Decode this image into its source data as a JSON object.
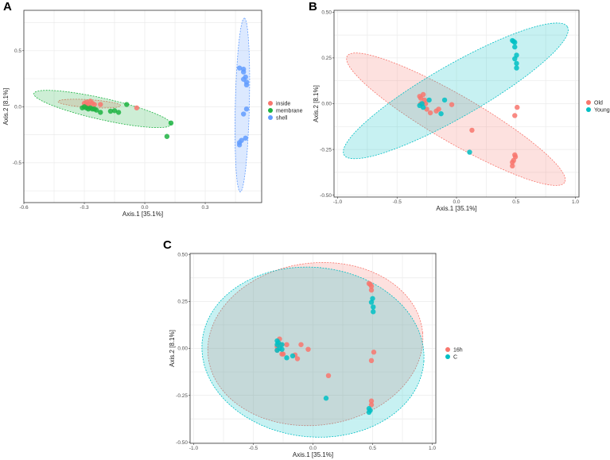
{
  "panel_labels": [
    "A",
    "B",
    "C"
  ],
  "chart_data": [
    {
      "type": "scatter",
      "panel": "A",
      "xlabel": "Axis.1   [35.1%]",
      "ylabel": "Axis.2   [8.1%]",
      "xlim": [
        -0.6,
        0.58
      ],
      "ylim": [
        -0.855,
        0.86
      ],
      "xticks": [
        -0.6,
        -0.3,
        0.0,
        0.3
      ],
      "xtick_labels": [
        "-0.6",
        "-0.3",
        "0.0",
        "0.3"
      ],
      "yticks": [
        -0.5,
        0.0,
        0.5
      ],
      "ytick_labels": [
        "-0.5",
        "0.0",
        "0.5"
      ],
      "grid": true,
      "legend": "right",
      "series": [
        {
          "name": "inside",
          "color": "#F8766D",
          "ellipse": {
            "center": [
              -0.275,
              0.028
            ],
            "a": [
              0.155,
              -0.018
            ],
            "b": [
              0.0,
              0.035
            ]
          },
          "points": [
            [
              -0.3,
              0.03
            ],
            [
              -0.29,
              0.04
            ],
            [
              -0.28,
              0.02
            ],
            [
              -0.27,
              0.05
            ],
            [
              -0.26,
              0.03
            ],
            [
              -0.25,
              0.02
            ],
            [
              -0.22,
              0.02
            ],
            [
              -0.28,
              0.0
            ],
            [
              -0.04,
              -0.01
            ]
          ]
        },
        {
          "name": "membrane",
          "color": "#1DB342",
          "ellipse": {
            "center": [
              -0.21,
              -0.02
            ],
            "a": [
              0.34,
              -0.14
            ],
            "b": [
              0.02,
              0.09
            ]
          },
          "points": [
            [
              -0.31,
              -0.01
            ],
            [
              -0.3,
              0.0
            ],
            [
              -0.29,
              -0.01
            ],
            [
              -0.28,
              -0.02
            ],
            [
              -0.27,
              -0.01
            ],
            [
              -0.26,
              -0.02
            ],
            [
              -0.25,
              -0.02
            ],
            [
              -0.24,
              -0.03
            ],
            [
              -0.22,
              -0.05
            ],
            [
              -0.17,
              -0.04
            ],
            [
              -0.15,
              -0.035
            ],
            [
              -0.13,
              -0.05
            ],
            [
              -0.09,
              0.02
            ],
            [
              0.13,
              -0.145
            ],
            [
              0.11,
              -0.265
            ]
          ]
        },
        {
          "name": "shell",
          "color": "#619CFF",
          "ellipse": {
            "center": [
              0.484,
              0.015
            ],
            "a": [
              0.01,
              0.775
            ],
            "b": [
              0.035,
              0.0
            ]
          },
          "points": [
            [
              0.47,
              0.345
            ],
            [
              0.49,
              0.335
            ],
            [
              0.49,
              0.31
            ],
            [
              0.5,
              0.265
            ],
            [
              0.49,
              0.245
            ],
            [
              0.505,
              0.22
            ],
            [
              0.505,
              0.195
            ],
            [
              0.505,
              -0.02
            ],
            [
              0.49,
              -0.065
            ],
            [
              0.5,
              -0.28
            ],
            [
              0.48,
              -0.3
            ],
            [
              0.47,
              -0.32
            ],
            [
              0.47,
              -0.34
            ]
          ]
        }
      ]
    },
    {
      "type": "scatter",
      "panel": "B",
      "xlabel": "Axis.1   [35.1%]",
      "ylabel": "Axis.2   [8.1%]",
      "xlim": [
        -1.03,
        1.03
      ],
      "ylim": [
        -0.51,
        0.51
      ],
      "xticks": [
        -1.0,
        -0.5,
        0.0,
        0.5,
        1.0
      ],
      "xtick_labels": [
        "-1.0",
        "-0.5",
        "0.0",
        "0.5",
        "1.0"
      ],
      "yticks": [
        -0.5,
        -0.25,
        0.0,
        0.25,
        0.5
      ],
      "ytick_labels": [
        "-0.50",
        "-0.25",
        "0.00",
        "0.25",
        "0.50"
      ],
      "grid": true,
      "legend": "right",
      "series": [
        {
          "name": "Old",
          "color": "#F8766D",
          "ellipse": {
            "center": [
              -0.005,
              -0.085
            ],
            "a": [
              0.915,
              -0.345
            ],
            "b": [
              -0.1,
              -0.11
            ]
          },
          "points": [
            [
              -0.31,
              0.04
            ],
            [
              -0.3,
              0.03
            ],
            [
              -0.28,
              0.05
            ],
            [
              -0.27,
              0.02
            ],
            [
              -0.3,
              0.0
            ],
            [
              -0.26,
              0.0
            ],
            [
              -0.25,
              -0.03
            ],
            [
              -0.22,
              -0.05
            ],
            [
              -0.17,
              -0.04
            ],
            [
              -0.15,
              -0.03
            ],
            [
              -0.04,
              -0.005
            ],
            [
              0.13,
              -0.145
            ],
            [
              0.51,
              -0.02
            ],
            [
              0.49,
              -0.065
            ],
            [
              0.49,
              -0.28
            ],
            [
              0.495,
              -0.29
            ],
            [
              0.48,
              -0.31
            ],
            [
              0.47,
              -0.32
            ],
            [
              0.47,
              -0.34
            ]
          ]
        },
        {
          "name": "Young",
          "color": "#00BFC4",
          "ellipse": {
            "center": [
              -0.006,
              0.07
            ],
            "a": [
              0.94,
              0.35
            ],
            "b": [
              0.11,
              -0.123
            ]
          },
          "points": [
            [
              -0.31,
              -0.01
            ],
            [
              -0.29,
              0.0
            ],
            [
              -0.28,
              -0.02
            ],
            [
              -0.23,
              0.02
            ],
            [
              -0.1,
              0.02
            ],
            [
              -0.13,
              -0.055
            ],
            [
              0.11,
              -0.265
            ],
            [
              0.47,
              0.345
            ],
            [
              0.48,
              0.34
            ],
            [
              0.49,
              0.335
            ],
            [
              0.49,
              0.31
            ],
            [
              0.505,
              0.265
            ],
            [
              0.49,
              0.245
            ],
            [
              0.505,
              0.22
            ],
            [
              0.505,
              0.195
            ]
          ]
        }
      ]
    },
    {
      "type": "scatter",
      "panel": "C",
      "xlabel": "Axis.1   [35.1%]",
      "ylabel": "Axis.2   [8.1%]",
      "xlim": [
        -1.03,
        1.03
      ],
      "ylim": [
        -0.505,
        0.505
      ],
      "xticks": [
        -1.0,
        -0.5,
        0.0,
        0.5,
        1.0
      ],
      "xtick_labels": [
        "-1.0",
        "-0.5",
        "0.0",
        "0.5",
        "1.0"
      ],
      "yticks": [
        -0.5,
        -0.25,
        0.0,
        0.25,
        0.5
      ],
      "ytick_labels": [
        "-0.50",
        "-0.25",
        "0.00",
        "0.25",
        "0.50"
      ],
      "grid": true,
      "legend": "right",
      "series": [
        {
          "name": "16h",
          "color": "#F8766D",
          "ellipse": {
            "center": [
              0.02,
              0.023
            ],
            "a": [
              0.9,
              0.06
            ],
            "b": [
              -0.06,
              0.43
            ]
          },
          "points": [
            [
              -0.3,
              0.01
            ],
            [
              -0.28,
              0.05
            ],
            [
              -0.27,
              0.02
            ],
            [
              -0.3,
              -0.01
            ],
            [
              -0.26,
              -0.03
            ],
            [
              -0.25,
              -0.03
            ],
            [
              -0.22,
              0.02
            ],
            [
              -0.1,
              0.02
            ],
            [
              -0.04,
              -0.005
            ],
            [
              -0.15,
              -0.035
            ],
            [
              -0.13,
              -0.055
            ],
            [
              0.13,
              -0.145
            ],
            [
              0.47,
              0.345
            ],
            [
              0.48,
              0.34
            ],
            [
              0.49,
              0.33
            ],
            [
              0.49,
              0.31
            ],
            [
              0.51,
              -0.02
            ],
            [
              0.49,
              -0.065
            ],
            [
              0.49,
              -0.28
            ],
            [
              0.49,
              -0.3
            ]
          ]
        },
        {
          "name": "C",
          "color": "#00BFC4",
          "ellipse": {
            "center": [
              0.0,
              -0.02
            ],
            "a": [
              0.93,
              -0.05
            ],
            "b": [
              0.05,
              0.45
            ]
          },
          "points": [
            [
              -0.3,
              0.04
            ],
            [
              -0.29,
              0.03
            ],
            [
              -0.3,
              0.02
            ],
            [
              -0.28,
              0.0
            ],
            [
              -0.3,
              -0.01
            ],
            [
              -0.26,
              0.02
            ],
            [
              -0.26,
              -0.005
            ],
            [
              -0.22,
              -0.05
            ],
            [
              -0.17,
              -0.04
            ],
            [
              0.11,
              -0.265
            ],
            [
              0.5,
              0.265
            ],
            [
              0.49,
              0.245
            ],
            [
              0.505,
              0.22
            ],
            [
              0.505,
              0.195
            ],
            [
              0.47,
              -0.32
            ],
            [
              0.47,
              -0.34
            ],
            [
              0.48,
              -0.33
            ]
          ]
        }
      ]
    }
  ]
}
